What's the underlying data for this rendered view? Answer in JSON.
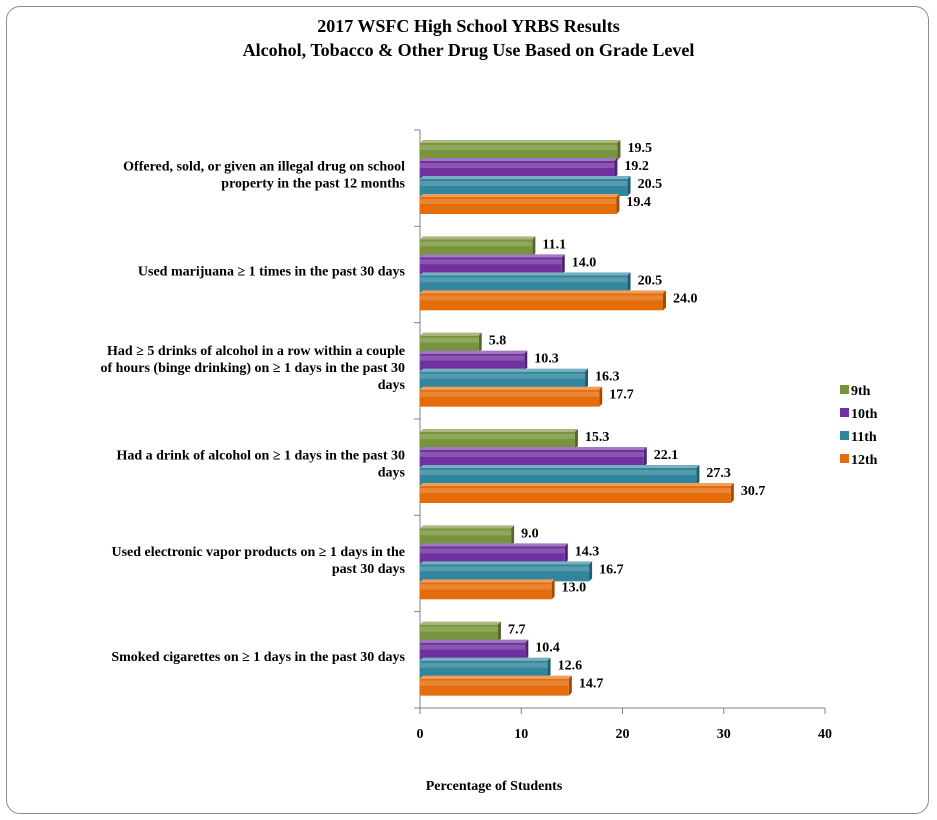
{
  "chart_data": {
    "type": "bar",
    "orientation": "horizontal",
    "title": "2017 WSFC High School YRBS Results",
    "subtitle": "Alcohol, Tobacco & Other Drug Use Based on Grade Level",
    "xlabel": "Percentage of Students",
    "xlim": [
      0,
      40
    ],
    "xticks": [
      "0",
      "10",
      "20",
      "30",
      "40"
    ],
    "grid": false,
    "legend_position": "right",
    "categories": [
      [
        "Offered, sold, or given an illegal drug on school",
        "property in the past 12 months"
      ],
      [
        "Used marijuana  ≥ 1 times in the past 30 days"
      ],
      [
        "Had ≥ 5  drinks of alcohol in a row within a couple",
        "of hours (binge drinking)  on ≥ 1 days in the past 30",
        "days"
      ],
      [
        "Had a drink  of alcohol on ≥ 1 days in the past 30",
        "days"
      ],
      [
        "Used electronic vapor products  on ≥ 1 days in the",
        "past 30 days"
      ],
      [
        "Smoked cigarettes on ≥ 1 days in the past 30 days"
      ]
    ],
    "series": [
      {
        "name": "9th",
        "color": "#77933c",
        "values": [
          19.5,
          11.1,
          5.8,
          15.3,
          9.0,
          7.7
        ],
        "labels": [
          "19.5",
          "11.1",
          "5.8",
          "15.3",
          "9.0",
          "7.7"
        ]
      },
      {
        "name": "10th",
        "color": "#7030a0",
        "values": [
          19.2,
          14.0,
          10.3,
          22.1,
          14.3,
          10.4
        ],
        "labels": [
          "19.2",
          "14.0",
          "10.3",
          "22.1",
          "14.3",
          "10.4"
        ]
      },
      {
        "name": "11th",
        "color": "#31859c",
        "values": [
          20.5,
          20.5,
          16.3,
          27.3,
          16.7,
          12.6
        ],
        "labels": [
          "20.5",
          "20.5",
          "16.3",
          "27.3",
          "16.7",
          "12.6"
        ]
      },
      {
        "name": "12th",
        "color": "#e46c0a",
        "values": [
          19.4,
          24.0,
          17.7,
          30.7,
          13.0,
          14.7
        ],
        "labels": [
          "19.4",
          "24.0",
          "17.7",
          "30.7",
          "13.0",
          "14.7"
        ]
      }
    ]
  }
}
